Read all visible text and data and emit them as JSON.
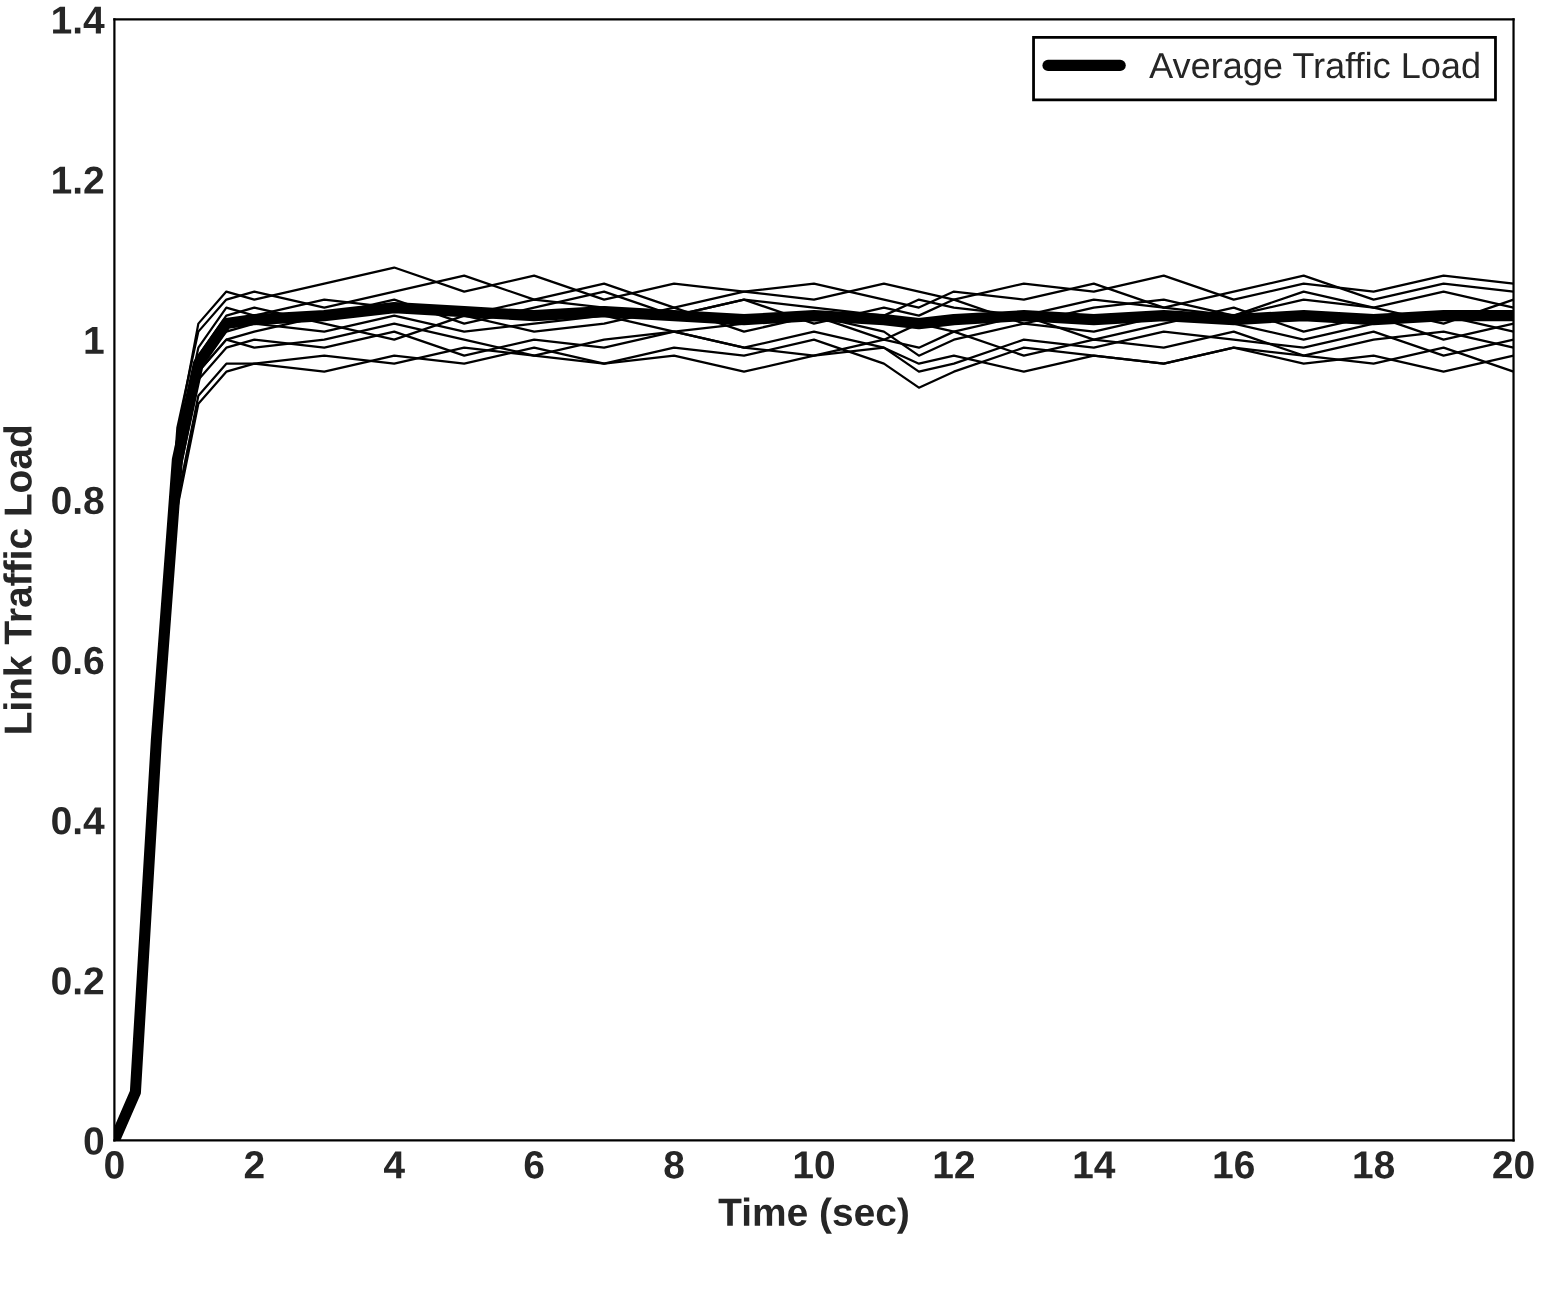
{
  "chart_data": {
    "type": "line",
    "xlabel": "Time (sec)",
    "ylabel": "Link Traffic Load",
    "x": [
      0,
      0.3,
      0.6,
      0.9,
      1.2,
      1.6,
      2,
      3,
      4,
      5,
      6,
      7,
      8,
      9,
      10,
      11,
      11.5,
      12,
      13,
      14,
      15,
      16,
      17,
      18,
      19,
      20
    ],
    "xlim": [
      0,
      20
    ],
    "xticks": [
      0,
      2,
      4,
      6,
      8,
      10,
      12,
      14,
      16,
      18,
      20
    ],
    "ylim": [
      0,
      1.4
    ],
    "yticks": [
      0,
      0.2,
      0.4,
      0.6,
      0.8,
      1,
      1.2,
      1.4
    ],
    "grid": false,
    "legend": "top right",
    "marker": "none",
    "line_style": "solid",
    "series": [
      {
        "color": "#000000",
        "values": [
          0,
          0.06,
          0.52,
          0.88,
          1.02,
          1.06,
          1.05,
          1.07,
          1.09,
          1.06,
          1.08,
          1.05,
          1.07,
          1.06,
          1.05,
          1.07,
          1.06,
          1.05,
          1.07,
          1.06,
          1.08,
          1.05,
          1.07,
          1.06,
          1.08,
          1.07
        ]
      },
      {
        "color": "#000000",
        "values": [
          0,
          0.06,
          0.48,
          0.8,
          0.93,
          0.97,
          0.97,
          0.98,
          0.97,
          0.99,
          0.98,
          0.97,
          0.99,
          0.98,
          1.0,
          0.97,
          0.94,
          0.96,
          0.99,
          0.98,
          0.97,
          0.99,
          0.98,
          0.97,
          0.99,
          0.96
        ]
      },
      {
        "color": "#000000",
        "values": [
          0,
          0.06,
          0.5,
          0.84,
          0.96,
          1.0,
          1.01,
          1.03,
          1.05,
          1.02,
          1.04,
          1.06,
          1.03,
          1.05,
          1.02,
          1.04,
          1.03,
          1.05,
          1.02,
          1.04,
          1.05,
          1.03,
          1.06,
          1.04,
          1.02,
          1.05
        ]
      },
      {
        "color": "#000000",
        "values": [
          0,
          0.06,
          0.51,
          0.86,
          0.98,
          1.03,
          1.04,
          1.02,
          1.0,
          1.03,
          1.01,
          1.02,
          1.04,
          1.01,
          1.03,
          1.0,
          1.02,
          1.01,
          1.03,
          1.0,
          1.02,
          1.04,
          1.01,
          1.03,
          1.0,
          1.02
        ]
      },
      {
        "color": "#000000",
        "values": [
          0,
          0.06,
          0.49,
          0.82,
          0.95,
          0.99,
          1.0,
          0.99,
          1.01,
          0.98,
          1.0,
          0.99,
          1.01,
          0.99,
          0.98,
          1.0,
          0.99,
          1.01,
          0.98,
          1.0,
          0.99,
          1.01,
          0.98,
          1.0,
          1.01,
          0.99
        ]
      },
      {
        "color": "#000000",
        "values": [
          0,
          0.06,
          0.53,
          0.89,
          1.01,
          1.05,
          1.06,
          1.04,
          1.06,
          1.08,
          1.05,
          1.07,
          1.04,
          1.06,
          1.07,
          1.05,
          1.04,
          1.06,
          1.05,
          1.07,
          1.04,
          1.06,
          1.08,
          1.05,
          1.07,
          1.06
        ]
      },
      {
        "color": "#000000",
        "values": [
          0,
          0.06,
          0.5,
          0.85,
          0.97,
          1.01,
          1.02,
          1.01,
          1.03,
          1.01,
          1.02,
          1.03,
          1.01,
          1.02,
          1.03,
          1.01,
          0.98,
          1.0,
          1.02,
          1.01,
          1.03,
          1.02,
          1.0,
          1.02,
          1.03,
          1.01
        ]
      },
      {
        "color": "#000000",
        "values": [
          0,
          0.06,
          0.47,
          0.79,
          0.92,
          0.96,
          0.97,
          0.96,
          0.98,
          0.97,
          0.99,
          0.97,
          0.98,
          0.96,
          0.98,
          0.99,
          0.97,
          0.98,
          0.96,
          0.98,
          0.97,
          0.99,
          0.97,
          0.98,
          0.96,
          0.98
        ]
      },
      {
        "color": "#000000",
        "values": [
          0,
          0.06,
          0.52,
          0.87,
          0.99,
          1.04,
          1.03,
          1.05,
          1.04,
          1.03,
          1.05,
          1.04,
          1.03,
          1.05,
          1.04,
          1.03,
          1.05,
          1.04,
          1.03,
          1.05,
          1.04,
          1.03,
          1.05,
          1.04,
          1.06,
          1.04
        ]
      },
      {
        "color": "#000000",
        "values": [
          0,
          0.06,
          0.5,
          0.84,
          0.96,
          1.0,
          0.99,
          1.0,
          1.02,
          1.0,
          0.98,
          1.0,
          1.01,
          0.99,
          1.01,
          0.99,
          0.96,
          0.97,
          1.0,
          0.99,
          1.01,
          1.0,
          0.99,
          1.01,
          0.98,
          1.0
        ]
      },
      {
        "name": "Average Traffic Load",
        "color": "#000000",
        "values": [
          0,
          0.06,
          0.5,
          0.85,
          0.97,
          1.02,
          1.025,
          1.03,
          1.04,
          1.035,
          1.03,
          1.035,
          1.03,
          1.025,
          1.03,
          1.025,
          1.02,
          1.025,
          1.03,
          1.025,
          1.03,
          1.025,
          1.03,
          1.025,
          1.03,
          1.03
        ]
      }
    ]
  }
}
